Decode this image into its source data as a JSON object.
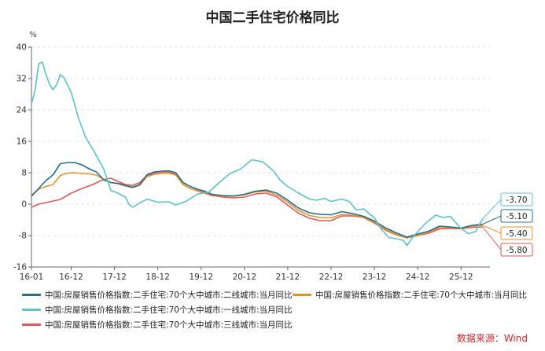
{
  "colors": {
    "tier2": "#1f6f93",
    "tier2_70": "#e8922a",
    "tier1": "#5bc3c9",
    "tier3": "#e05a57",
    "axis": "#666666",
    "grid": "#e5e5e5",
    "source": "#d9262c"
  },
  "chart_data": {
    "type": "line",
    "title": "中国二手住宅价格同比",
    "y_unit": "%",
    "xlabel": "",
    "ylabel": "",
    "ylim": [
      -16,
      40
    ],
    "yticks": [
      -16,
      -8,
      0,
      8,
      16,
      24,
      32,
      40
    ],
    "xlim": [
      "2016-01",
      "2026-08"
    ],
    "xticks": [
      "16-01",
      "16-12",
      "17-12",
      "18-12",
      "19-12",
      "20-12",
      "21-12",
      "22-12",
      "23-12",
      "24-12",
      "25-12"
    ],
    "xtick_dates": [
      "2016-01",
      "2016-12",
      "2017-12",
      "2018-12",
      "2019-12",
      "2020-12",
      "2021-12",
      "2022-12",
      "2023-12",
      "2024-12",
      "2025-12"
    ],
    "grid": "horizontal-dashed",
    "legend_position": "bottom",
    "series": [
      {
        "name": "中国:房屋销售价格指数:二手住宅:70个大中城市:二线城市:当月同比",
        "color_key": "tier2",
        "end_label": "-5.10",
        "points": [
          [
            "2016-01",
            2.0
          ],
          [
            "2016-03",
            4.0
          ],
          [
            "2016-05",
            6.0
          ],
          [
            "2016-07",
            7.5
          ],
          [
            "2016-09",
            10.3
          ],
          [
            "2016-11",
            10.6
          ],
          [
            "2017-01",
            10.6
          ],
          [
            "2017-03",
            10.0
          ],
          [
            "2017-05",
            9.0
          ],
          [
            "2017-07",
            8.2
          ],
          [
            "2017-09",
            6.2
          ],
          [
            "2017-11",
            5.5
          ],
          [
            "2018-01",
            5.3
          ],
          [
            "2018-03",
            4.8
          ],
          [
            "2018-05",
            4.3
          ],
          [
            "2018-07",
            5.0
          ],
          [
            "2018-09",
            7.5
          ],
          [
            "2018-11",
            8.2
          ],
          [
            "2019-01",
            8.4
          ],
          [
            "2019-03",
            8.5
          ],
          [
            "2019-05",
            8.0
          ],
          [
            "2019-07",
            5.5
          ],
          [
            "2019-09",
            4.5
          ],
          [
            "2019-11",
            3.8
          ],
          [
            "2020-01",
            3.3
          ],
          [
            "2020-03",
            2.5
          ],
          [
            "2020-06",
            2.2
          ],
          [
            "2020-09",
            2.1
          ],
          [
            "2020-12",
            2.5
          ],
          [
            "2021-03",
            3.3
          ],
          [
            "2021-06",
            3.6
          ],
          [
            "2021-09",
            2.8
          ],
          [
            "2021-12",
            1.0
          ],
          [
            "2022-03",
            -1.0
          ],
          [
            "2022-06",
            -2.2
          ],
          [
            "2022-09",
            -2.6
          ],
          [
            "2022-12",
            -2.7
          ],
          [
            "2023-03",
            -1.9
          ],
          [
            "2023-06",
            -2.4
          ],
          [
            "2023-09",
            -3.1
          ],
          [
            "2023-12",
            -4.3
          ],
          [
            "2024-03",
            -6.0
          ],
          [
            "2024-06",
            -7.3
          ],
          [
            "2024-09",
            -8.4
          ],
          [
            "2024-12",
            -7.6
          ],
          [
            "2025-03",
            -6.9
          ],
          [
            "2025-06",
            -5.6
          ],
          [
            "2025-09",
            -5.8
          ],
          [
            "2025-12",
            -6.1
          ],
          [
            "2026-03",
            -5.4
          ],
          [
            "2026-06",
            -5.1
          ]
        ]
      },
      {
        "name": "中国:房屋销售价格指数:二手住宅:70个大中城市:当月同比",
        "color_key": "tier2_70",
        "end_label": "-5.40",
        "points": [
          [
            "2016-01",
            2.3
          ],
          [
            "2016-03",
            3.8
          ],
          [
            "2016-05",
            4.5
          ],
          [
            "2016-07",
            5.0
          ],
          [
            "2016-09",
            7.3
          ],
          [
            "2016-11",
            7.9
          ],
          [
            "2017-01",
            8.0
          ],
          [
            "2017-03",
            7.8
          ],
          [
            "2017-05",
            7.7
          ],
          [
            "2017-07",
            7.4
          ],
          [
            "2017-09",
            6.3
          ],
          [
            "2017-11",
            5.5
          ],
          [
            "2018-01",
            5.2
          ],
          [
            "2018-03",
            4.6
          ],
          [
            "2018-05",
            4.2
          ],
          [
            "2018-07",
            4.8
          ],
          [
            "2018-09",
            7.0
          ],
          [
            "2018-11",
            7.6
          ],
          [
            "2019-01",
            7.8
          ],
          [
            "2019-03",
            7.9
          ],
          [
            "2019-05",
            7.4
          ],
          [
            "2019-07",
            5.0
          ],
          [
            "2019-09",
            4.0
          ],
          [
            "2019-11",
            3.5
          ],
          [
            "2020-01",
            3.0
          ],
          [
            "2020-03",
            2.4
          ],
          [
            "2020-06",
            2.0
          ],
          [
            "2020-09",
            2.0
          ],
          [
            "2020-12",
            2.4
          ],
          [
            "2021-03",
            3.1
          ],
          [
            "2021-06",
            3.3
          ],
          [
            "2021-09",
            2.3
          ],
          [
            "2021-12",
            0.5
          ],
          [
            "2022-03",
            -1.6
          ],
          [
            "2022-06",
            -2.9
          ],
          [
            "2022-09",
            -3.4
          ],
          [
            "2022-12",
            -3.5
          ],
          [
            "2023-03",
            -2.6
          ],
          [
            "2023-06",
            -2.8
          ],
          [
            "2023-09",
            -3.3
          ],
          [
            "2023-12",
            -4.6
          ],
          [
            "2024-03",
            -6.4
          ],
          [
            "2024-06",
            -7.7
          ],
          [
            "2024-09",
            -8.6
          ],
          [
            "2024-12",
            -7.9
          ],
          [
            "2025-03",
            -7.2
          ],
          [
            "2025-06",
            -6.0
          ],
          [
            "2025-09",
            -6.0
          ],
          [
            "2025-12",
            -6.2
          ],
          [
            "2026-03",
            -5.6
          ],
          [
            "2026-06",
            -5.4
          ]
        ]
      },
      {
        "name": "中国:房屋销售价格指数:二手住宅:70个大中城市:一线城市:当月同比",
        "color_key": "tier1",
        "end_label": "-3.70",
        "points": [
          [
            "2016-01",
            25.5
          ],
          [
            "2016-02",
            29.0
          ],
          [
            "2016-03",
            35.8
          ],
          [
            "2016-04",
            36.2
          ],
          [
            "2016-05",
            33.0
          ],
          [
            "2016-06",
            30.5
          ],
          [
            "2016-07",
            29.2
          ],
          [
            "2016-08",
            30.5
          ],
          [
            "2016-09",
            33.0
          ],
          [
            "2016-10",
            32.2
          ],
          [
            "2016-12",
            28.5
          ],
          [
            "2017-02",
            22.0
          ],
          [
            "2017-04",
            17.0
          ],
          [
            "2017-06",
            14.0
          ],
          [
            "2017-09",
            9.0
          ],
          [
            "2017-11",
            3.5
          ],
          [
            "2018-01",
            2.8
          ],
          [
            "2018-03",
            1.8
          ],
          [
            "2018-04",
            0.0
          ],
          [
            "2018-05",
            -0.8
          ],
          [
            "2018-07",
            0.3
          ],
          [
            "2018-09",
            1.3
          ],
          [
            "2018-12",
            0.5
          ],
          [
            "2019-03",
            0.6
          ],
          [
            "2019-05",
            -0.2
          ],
          [
            "2019-08",
            0.8
          ],
          [
            "2019-11",
            2.6
          ],
          [
            "2020-02",
            3.0
          ],
          [
            "2020-05",
            5.5
          ],
          [
            "2020-08",
            7.8
          ],
          [
            "2020-11",
            9.0
          ],
          [
            "2021-02",
            11.3
          ],
          [
            "2021-05",
            10.8
          ],
          [
            "2021-08",
            8.5
          ],
          [
            "2021-10",
            6.0
          ],
          [
            "2021-12",
            4.5
          ],
          [
            "2022-03",
            2.8
          ],
          [
            "2022-06",
            1.3
          ],
          [
            "2022-08",
            1.0
          ],
          [
            "2022-10",
            1.5
          ],
          [
            "2022-12",
            0.7
          ],
          [
            "2023-03",
            1.3
          ],
          [
            "2023-05",
            0.7
          ],
          [
            "2023-07",
            -1.5
          ],
          [
            "2023-09",
            -1.2
          ],
          [
            "2023-12",
            -3.5
          ],
          [
            "2024-02",
            -6.5
          ],
          [
            "2024-04",
            -8.5
          ],
          [
            "2024-06",
            -8.8
          ],
          [
            "2024-08",
            -9.2
          ],
          [
            "2024-09",
            -10.5
          ],
          [
            "2024-11",
            -8.0
          ],
          [
            "2025-02",
            -5.0
          ],
          [
            "2025-05",
            -2.8
          ],
          [
            "2025-07",
            -3.4
          ],
          [
            "2025-09",
            -3.1
          ],
          [
            "2025-12",
            -6.2
          ],
          [
            "2026-02",
            -7.5
          ],
          [
            "2026-04",
            -7.0
          ],
          [
            "2026-06",
            -3.7
          ]
        ]
      },
      {
        "name": "中国:房屋销售价格指数:二手住宅:70个大中城市:三线城市:当月同比",
        "color_key": "tier3",
        "end_label": "-5.80",
        "points": [
          [
            "2016-01",
            -0.8
          ],
          [
            "2016-03",
            0.0
          ],
          [
            "2016-06",
            0.6
          ],
          [
            "2016-09",
            1.2
          ],
          [
            "2016-12",
            2.8
          ],
          [
            "2017-03",
            4.0
          ],
          [
            "2017-06",
            5.0
          ],
          [
            "2017-09",
            6.3
          ],
          [
            "2017-11",
            6.6
          ],
          [
            "2018-01",
            5.8
          ],
          [
            "2018-03",
            5.0
          ],
          [
            "2018-05",
            4.8
          ],
          [
            "2018-07",
            5.5
          ],
          [
            "2018-09",
            7.3
          ],
          [
            "2018-11",
            7.9
          ],
          [
            "2019-01",
            8.2
          ],
          [
            "2019-03",
            8.2
          ],
          [
            "2019-05",
            7.6
          ],
          [
            "2019-07",
            5.0
          ],
          [
            "2019-09",
            4.0
          ],
          [
            "2019-11",
            3.4
          ],
          [
            "2020-01",
            2.8
          ],
          [
            "2020-03",
            2.2
          ],
          [
            "2020-06",
            1.8
          ],
          [
            "2020-09",
            1.6
          ],
          [
            "2020-12",
            1.8
          ],
          [
            "2021-03",
            2.6
          ],
          [
            "2021-06",
            2.8
          ],
          [
            "2021-09",
            1.8
          ],
          [
            "2021-12",
            -0.3
          ],
          [
            "2022-03",
            -2.3
          ],
          [
            "2022-06",
            -3.6
          ],
          [
            "2022-09",
            -4.2
          ],
          [
            "2022-12",
            -4.2
          ],
          [
            "2023-03",
            -3.0
          ],
          [
            "2023-06",
            -3.0
          ],
          [
            "2023-09",
            -3.4
          ],
          [
            "2023-12",
            -4.8
          ],
          [
            "2024-03",
            -6.6
          ],
          [
            "2024-06",
            -7.8
          ],
          [
            "2024-09",
            -8.6
          ],
          [
            "2024-12",
            -8.0
          ],
          [
            "2025-03",
            -7.4
          ],
          [
            "2025-06",
            -6.3
          ],
          [
            "2025-09",
            -6.2
          ],
          [
            "2025-12",
            -6.3
          ],
          [
            "2026-03",
            -5.9
          ],
          [
            "2026-06",
            -5.8
          ]
        ]
      }
    ],
    "source": "数据来源：Wind"
  }
}
